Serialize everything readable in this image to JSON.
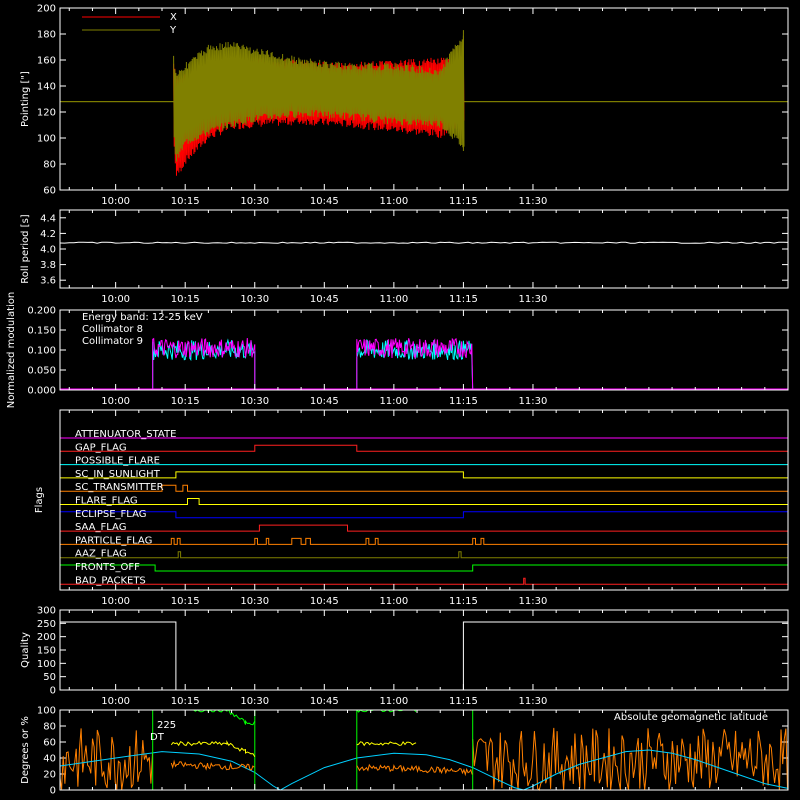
{
  "colors": {
    "background": "#000000",
    "axes": "#ffffff",
    "x_pointing": "#ff0000",
    "y_pointing": "#808000",
    "collimator8": "#00ffff",
    "collimator9": "#ff00ff",
    "green": "#00ff00",
    "yellow": "#ffff00",
    "orange": "#ff8000",
    "cyan": "#00d0ff"
  },
  "time_axis": {
    "range_minutes": [
      -12,
      145
    ],
    "tick_minutes": [
      0,
      15,
      30,
      45,
      60,
      75,
      90
    ],
    "tick_labels": [
      "10:00",
      "10:15",
      "10:30",
      "10:45",
      "11:00",
      "11:15",
      "11:30"
    ]
  },
  "chart_data": [
    {
      "id": "pointing",
      "type": "line",
      "ylabel": "Pointing [\"]",
      "ylim": [
        60,
        200
      ],
      "yticks": [
        60,
        80,
        100,
        120,
        140,
        160,
        180,
        200
      ],
      "ytick_labels": [
        "60",
        "80",
        "100",
        "120",
        "140",
        "160",
        "180",
        "200"
      ],
      "legend": {
        "placement": "top-left",
        "entries": [
          "X",
          "Y"
        ]
      },
      "series": [
        {
          "name": "X",
          "color": "#ff0000",
          "baseline": 128,
          "data_start_min": 12.5,
          "data_end_min": 75,
          "envelope": {
            "t": [
              12.5,
              13,
              15,
              20,
              25,
              30,
              40,
              50,
              60,
              70,
              75
            ],
            "upper": [
              160,
              148,
              150,
              158,
              160,
              162,
              160,
              158,
              160,
              162,
              160
            ],
            "lower": [
              90,
              68,
              80,
              98,
              106,
              108,
              110,
              108,
              104,
              100,
              112
            ]
          }
        },
        {
          "name": "Y",
          "color": "#808000",
          "baseline": 128,
          "data_start_min": 12.5,
          "data_end_min": 75,
          "envelope": {
            "t": [
              12.5,
              13,
              15,
              20,
              25,
              30,
              40,
              50,
              60,
              70,
              75
            ],
            "upper": [
              165,
              152,
              158,
              172,
              175,
              170,
              162,
              158,
              158,
              154,
              183
            ],
            "lower": [
              95,
              80,
              94,
              102,
              108,
              112,
              116,
              114,
              110,
              108,
              90
            ]
          }
        }
      ]
    },
    {
      "id": "roll_period",
      "type": "line",
      "ylabel": "Roll period [s]",
      "ylim": [
        3.5,
        4.5
      ],
      "yticks": [
        3.6,
        3.8,
        4.0,
        4.2,
        4.4
      ],
      "ytick_labels": [
        "3.6",
        "3.8",
        "4.0",
        "4.2",
        "4.4"
      ],
      "series": [
        {
          "value": 4.08
        }
      ]
    },
    {
      "id": "modulation",
      "type": "line",
      "ylabel": "Normalized modulation",
      "ylim": [
        0,
        0.2
      ],
      "yticks": [
        0,
        0.05,
        0.1,
        0.15,
        0.2
      ],
      "ytick_labels": [
        "0.000",
        "0.050",
        "0.100",
        "0.150",
        "0.200"
      ],
      "annotation": "Energy band: 12-25 keV",
      "legend": {
        "placement": "top-left",
        "entries": [
          "Collimator 8",
          "Collimator 9"
        ]
      },
      "series": [
        {
          "name": "Collimator 8",
          "color": "#00ffff",
          "intervals": [
            [
              8,
              30
            ],
            [
              52,
              77
            ]
          ],
          "level": 0.1
        },
        {
          "name": "Collimator 9",
          "color": "#ff00ff",
          "intervals": [
            [
              8,
              30
            ],
            [
              52,
              77
            ]
          ],
          "level": 0.105
        }
      ]
    },
    {
      "id": "flags",
      "type": "line",
      "ylabel": "Flags",
      "series": [
        {
          "name": "ATTENUATOR_STATE",
          "color": "#ff00ff",
          "on": []
        },
        {
          "name": "GAP_FLAG",
          "color": "#ff2020",
          "on": [
            [
              30,
              52
            ]
          ]
        },
        {
          "name": "POSSIBLE_FLARE",
          "color": "#00ffff",
          "on": []
        },
        {
          "name": "SC_IN_SUNLIGHT",
          "color": "#ffff00",
          "on": [
            [
              13,
              75
            ]
          ]
        },
        {
          "name": "SC_TRANSMITTER",
          "color": "#ff8000",
          "on": [
            [
              10,
              13
            ],
            [
              14.5,
              15.5
            ]
          ]
        },
        {
          "name": "FLARE_FLAG",
          "color": "#ffff00",
          "on": [
            [
              15.5,
              18
            ]
          ]
        },
        {
          "name": "ECLIPSE_FLAG",
          "color": "#0000ff",
          "on": [
            [
              -12,
              13
            ],
            [
              75,
              145
            ]
          ]
        },
        {
          "name": "SAA_FLAG",
          "color": "#ff2020",
          "on": [
            [
              31,
              50
            ]
          ]
        },
        {
          "name": "PARTICLE_FLAG",
          "color": "#ff8000",
          "on": [
            [
              12,
              12.6
            ],
            [
              13.3,
              13.9
            ],
            [
              30,
              30.6
            ],
            [
              32.5,
              33
            ],
            [
              38,
              40
            ],
            [
              41,
              42
            ],
            [
              54,
              54.6
            ],
            [
              56,
              56.6
            ],
            [
              77,
              77.6
            ],
            [
              78.8,
              79.4
            ]
          ]
        },
        {
          "name": "AAZ_FLAG",
          "color": "#808000",
          "on": [
            [
              13.5,
              14
            ],
            [
              74,
              74.5
            ]
          ]
        },
        {
          "name": "FRONTS_OFF",
          "color": "#00ff00",
          "on": [
            [
              -12,
              8.5
            ],
            [
              77,
              145
            ]
          ]
        },
        {
          "name": "BAD_PACKETS",
          "color": "#ff2020",
          "on": [
            [
              88,
              88.3
            ]
          ]
        }
      ]
    },
    {
      "id": "quality",
      "type": "line",
      "ylabel": "Quality",
      "ylim": [
        0,
        300
      ],
      "yticks": [
        0,
        50,
        100,
        150,
        200,
        250,
        300
      ],
      "ytick_labels": [
        "0",
        "50",
        "100",
        "150",
        "200",
        "250",
        "300"
      ],
      "series": [
        {
          "segments": [
            [
              [
                -12,
                255
              ],
              [
                13,
                255
              ],
              [
                13,
                0
              ],
              [
                75,
                0
              ],
              [
                75,
                255
              ],
              [
                145,
                255
              ]
            ]
          ]
        }
      ]
    },
    {
      "id": "geomagnetic",
      "type": "line",
      "ylabel": "Degrees or %",
      "ylim": [
        0,
        100
      ],
      "yticks": [
        0,
        20,
        40,
        60,
        80,
        100
      ],
      "ytick_labels": [
        "0",
        "20",
        "40",
        "60",
        "80",
        "100"
      ],
      "annotation": "Absolute geomagnetic latitude",
      "partial_labels": [
        "225",
        "DT"
      ],
      "series": [
        {
          "name": "Absolute geomagnetic latitude",
          "color": "#00d0ff",
          "points": [
            [
              -12,
              30
            ],
            [
              0,
              40
            ],
            [
              10,
              48
            ],
            [
              18,
              45
            ],
            [
              25,
              36
            ],
            [
              30,
              22
            ],
            [
              34,
              5
            ],
            [
              35.5,
              0
            ],
            [
              38,
              8
            ],
            [
              45,
              28
            ],
            [
              52,
              40
            ],
            [
              60,
              46
            ],
            [
              67,
              44
            ],
            [
              72,
              38
            ],
            [
              77,
              28
            ],
            [
              82,
              14
            ],
            [
              86,
              3
            ],
            [
              88,
              0
            ],
            [
              90,
              5
            ],
            [
              95,
              20
            ],
            [
              100,
              32
            ],
            [
              105,
              40
            ],
            [
              110,
              48
            ],
            [
              115,
              50
            ],
            [
              120,
              46
            ],
            [
              125,
              38
            ],
            [
              130,
              28
            ],
            [
              135,
              18
            ],
            [
              140,
              8
            ],
            [
              145,
              2
            ]
          ]
        },
        {
          "name": "green",
          "color": "#00ff00",
          "points": [
            [
              -12,
              0
            ],
            [
              8,
              0
            ],
            [
              8,
              100
            ],
            [
              30,
              100
            ],
            [
              30,
              0
            ],
            [
              52,
              0
            ],
            [
              52,
              100
            ],
            [
              77,
              100
            ],
            [
              77,
              0
            ],
            [
              145,
              0
            ]
          ]
        },
        {
          "name": "green_rate",
          "color": "#00ff00",
          "segments": [
            [
              [
                14,
                100
              ],
              [
                24,
                100
              ],
              [
                28,
                84
              ],
              [
                30,
                84
              ],
              [
                30,
                78
              ]
            ],
            [
              [
                52,
                100
              ],
              [
                65,
                100
              ],
              [
                65,
                86
              ],
              [
                77,
                86
              ],
              [
                77,
                82
              ]
            ]
          ]
        },
        {
          "name": "yellow_rate",
          "color": "#ffff00",
          "segments": [
            [
              [
                12,
                58
              ],
              [
                24,
                58
              ],
              [
                28,
                48
              ],
              [
                30,
                44
              ]
            ],
            [
              [
                52,
                58
              ],
              [
                65,
                58
              ],
              [
                65,
                50
              ],
              [
                77,
                46
              ]
            ]
          ]
        },
        {
          "name": "orange_rate",
          "color": "#ff8000",
          "noisy": true,
          "segments": [
            [
              [
                12,
                32
              ],
              [
                20,
                30
              ],
              [
                30,
                28
              ]
            ],
            [
              [
                52,
                28
              ],
              [
                60,
                27
              ],
              [
                70,
                25
              ],
              [
                77,
                22
              ]
            ]
          ]
        }
      ]
    }
  ]
}
